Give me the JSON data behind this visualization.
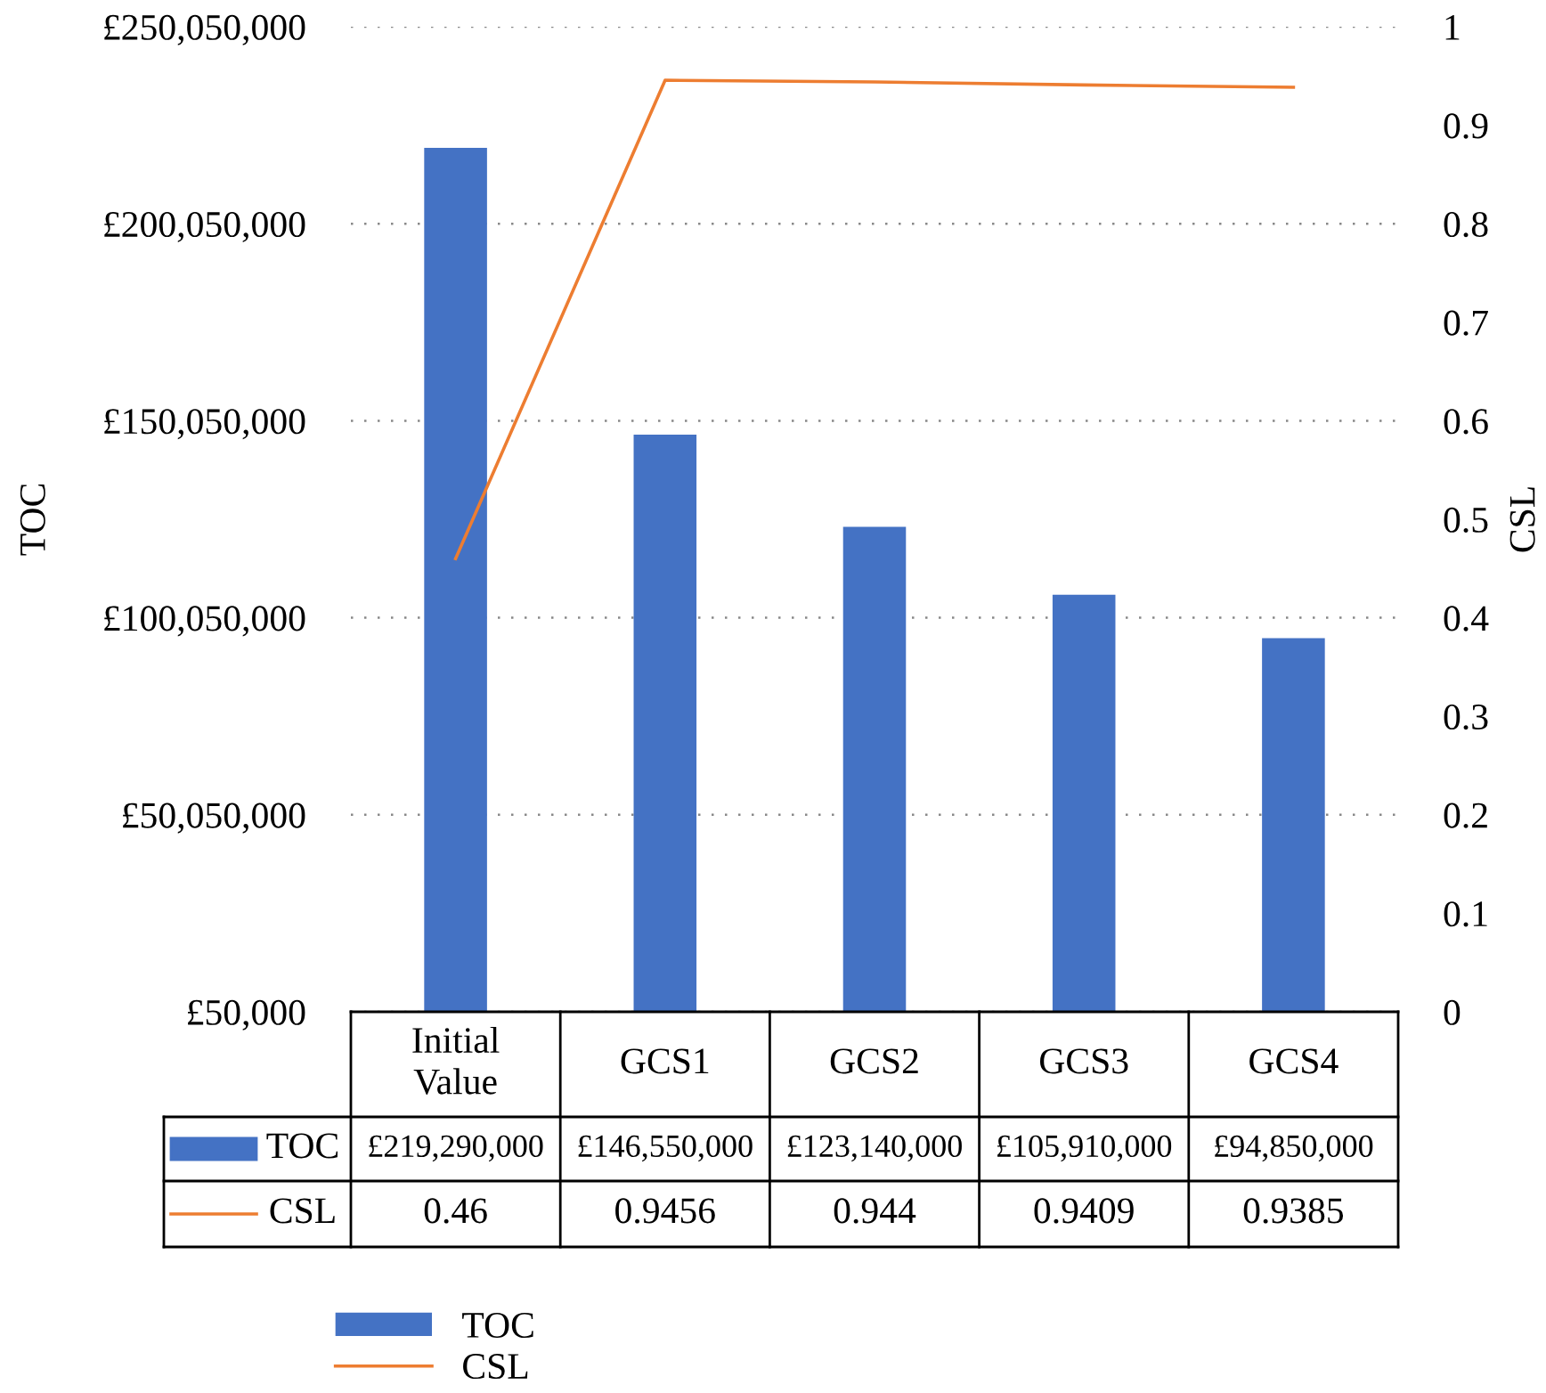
{
  "chart_data": {
    "type": "bar",
    "ylabel": "TOC",
    "y2label": "CSL",
    "categories": [
      "Initial Value",
      "GCS1",
      "GCS2",
      "GCS3",
      "GCS4"
    ],
    "series": [
      {
        "name": "TOC",
        "color": "#4472c4",
        "values": [
          219290000,
          146550000,
          123140000,
          105910000,
          94850000
        ],
        "value_labels": [
          "£219,290,000",
          "£146,550,000",
          "£123,140,000",
          "£105,910,000",
          "£94,850,000"
        ]
      },
      {
        "name": "CSL",
        "type": "line",
        "axis": "y2",
        "color": "#ed7d31",
        "values": [
          0.46,
          0.9456,
          0.944,
          0.9409,
          0.9385
        ],
        "value_labels": [
          "0.46",
          "0.9456",
          "0.944",
          "0.9409",
          "0.9385"
        ]
      }
    ],
    "ylim": [
      50000,
      250050000
    ],
    "yticks": [
      {
        "value": 50000,
        "label": "£50,000"
      },
      {
        "value": 50050000,
        "label": "£50,050,000"
      },
      {
        "value": 100050000,
        "label": "£100,050,000"
      },
      {
        "value": 150050000,
        "label": "£150,050,000"
      },
      {
        "value": 200050000,
        "label": "£200,050,000"
      },
      {
        "value": 250050000,
        "label": "£250,050,000"
      }
    ],
    "y2lim": [
      0,
      1
    ],
    "y2ticks": [
      0,
      0.1,
      0.2,
      0.3,
      0.4,
      0.5,
      0.6,
      0.7,
      0.8,
      0.9,
      1
    ],
    "grid": "y",
    "legend": "bottom",
    "line_style": "solid",
    "marker": "none"
  }
}
